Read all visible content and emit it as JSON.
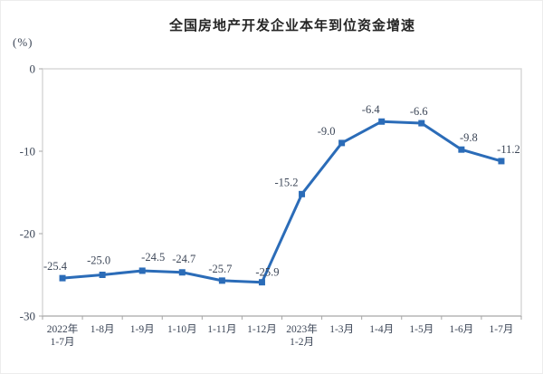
{
  "title": "全国房地产开发企业本年到位资金增速",
  "y_axis_unit": "(%)",
  "colors": {
    "line": "#2b6cb8",
    "marker": "#2b6cb8",
    "title_text": "#262626",
    "axis_text": "#3c4657",
    "data_label_text": "#3c4657",
    "plot_border": "#d9d9d9",
    "axis_line": "#b3b3b3",
    "tick": "#a6a6a6",
    "background": "#ffffff"
  },
  "chart_data": {
    "type": "line",
    "title": "全国房地产开发企业本年到位资金增速",
    "ylabel": "(%)",
    "xlabel": "",
    "categories": [
      "2022年\n1-7月",
      "1-8月",
      "1-9月",
      "1-10月",
      "1-11月",
      "1-12月",
      "2023年\n1-2月",
      "1-3月",
      "1-4月",
      "1-5月",
      "1-6月",
      "1-7月"
    ],
    "values": [
      -25.4,
      -25.0,
      -24.5,
      -24.7,
      -25.7,
      -25.9,
      -15.2,
      -9.0,
      -6.4,
      -6.6,
      -9.8,
      -11.2
    ],
    "labels": [
      "-25.4",
      "-25.0",
      "-24.5",
      "-24.7",
      "-25.7",
      "-25.9",
      "-15.2",
      "-9.0",
      "-6.4",
      "-6.6",
      "-9.8",
      "-11.2"
    ],
    "ylim": [
      -30,
      0
    ],
    "yticks": [
      0,
      -10,
      -20,
      -30
    ],
    "ytick_labels": [
      "0",
      "-10",
      "-20",
      "-30"
    ],
    "grid": false,
    "legend": "none",
    "marker": "square",
    "label_dx": [
      -8,
      -4,
      12,
      2,
      -2,
      6,
      -17,
      -17,
      -12,
      -3,
      8,
      8
    ],
    "label_dy": [
      0,
      -3,
      -2,
      -2,
      0,
      2,
      0,
      0,
      0,
      0,
      0,
      0
    ]
  }
}
